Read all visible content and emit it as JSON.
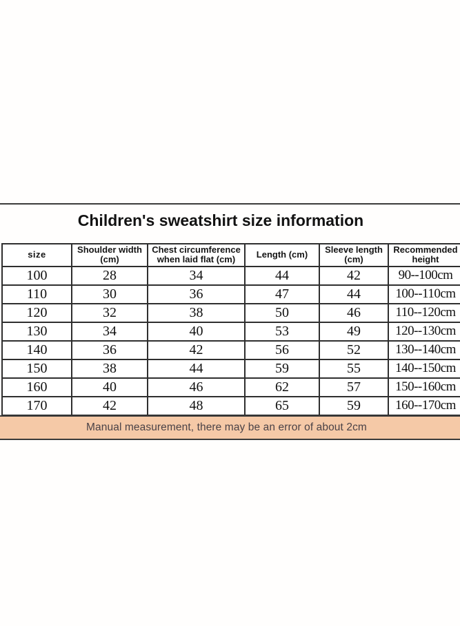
{
  "page": {
    "title": "Children's sweatshirt size information"
  },
  "table": {
    "headers": [
      "size",
      "Shoulder width (cm)",
      "Chest circumference when laid flat (cm)",
      "Length (cm)",
      "Sleeve length (cm)",
      "Recommended height"
    ],
    "rows": [
      [
        "100",
        "28",
        "34",
        "44",
        "42",
        "90--100cm"
      ],
      [
        "110",
        "30",
        "36",
        "47",
        "44",
        "100--110cm"
      ],
      [
        "120",
        "32",
        "38",
        "50",
        "46",
        "110--120cm"
      ],
      [
        "130",
        "34",
        "40",
        "53",
        "49",
        "120--130cm"
      ],
      [
        "140",
        "36",
        "42",
        "56",
        "52",
        "130--140cm"
      ],
      [
        "150",
        "38",
        "44",
        "59",
        "55",
        "140--150cm"
      ],
      [
        "160",
        "40",
        "46",
        "62",
        "57",
        "150--160cm"
      ],
      [
        "170",
        "42",
        "48",
        "65",
        "59",
        "160--170cm"
      ]
    ]
  },
  "banner": {
    "text": "Manual measurement, there may be an error of about 2cm"
  },
  "colors": {
    "banner_bg": "#f5c9a7",
    "banner_text": "#4a4247",
    "border": "#2e2e2e"
  }
}
